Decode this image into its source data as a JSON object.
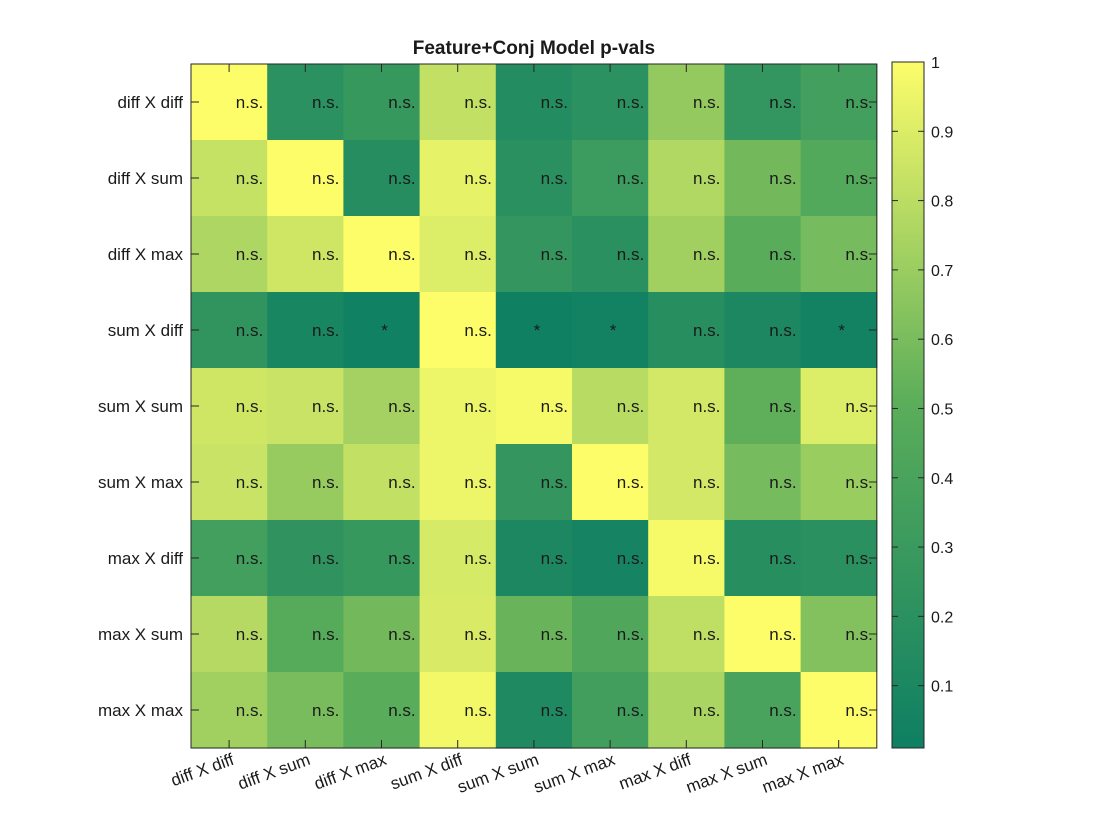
{
  "chart_data": {
    "type": "heatmap",
    "title": "Feature+Conj Model p-vals",
    "row_labels": [
      "diff X diff",
      "diff X sum",
      "diff X max",
      "sum X diff",
      "sum X sum",
      "sum X max",
      "max X diff",
      "max X sum",
      "max X max"
    ],
    "col_labels": [
      "diff X diff",
      "diff X sum",
      "diff X max",
      "sum X diff",
      "sum X sum",
      "sum X max",
      "max X diff",
      "max X sum",
      "max X max"
    ],
    "values": [
      [
        1.0,
        0.2,
        0.28,
        0.82,
        0.15,
        0.2,
        0.68,
        0.25,
        0.35
      ],
      [
        0.83,
        1.0,
        0.16,
        0.93,
        0.19,
        0.31,
        0.77,
        0.58,
        0.46
      ],
      [
        0.76,
        0.86,
        1.0,
        0.9,
        0.26,
        0.19,
        0.72,
        0.5,
        0.59
      ],
      [
        0.24,
        0.08,
        0.03,
        1.0,
        0.02,
        0.04,
        0.17,
        0.1,
        0.04
      ],
      [
        0.86,
        0.84,
        0.73,
        0.95,
        0.98,
        0.79,
        0.87,
        0.52,
        0.9
      ],
      [
        0.84,
        0.69,
        0.82,
        0.95,
        0.26,
        1.0,
        0.87,
        0.59,
        0.7
      ],
      [
        0.35,
        0.23,
        0.28,
        0.88,
        0.1,
        0.06,
        0.98,
        0.17,
        0.19
      ],
      [
        0.78,
        0.48,
        0.58,
        0.89,
        0.55,
        0.44,
        0.81,
        1.0,
        0.63
      ],
      [
        0.72,
        0.6,
        0.49,
        0.97,
        0.12,
        0.34,
        0.75,
        0.4,
        1.0
      ]
    ],
    "annotations": [
      [
        "n.s.",
        "n.s.",
        "n.s.",
        "n.s.",
        "n.s.",
        "n.s.",
        "n.s.",
        "n.s.",
        "n.s."
      ],
      [
        "n.s.",
        "n.s.",
        "n.s.",
        "n.s.",
        "n.s.",
        "n.s.",
        "n.s.",
        "n.s.",
        "n.s."
      ],
      [
        "n.s.",
        "n.s.",
        "n.s.",
        "n.s.",
        "n.s.",
        "n.s.",
        "n.s.",
        "n.s.",
        "n.s."
      ],
      [
        "n.s.",
        "n.s.",
        "*",
        "n.s.",
        "*",
        "*",
        "n.s.",
        "n.s.",
        "*"
      ],
      [
        "n.s.",
        "n.s.",
        "n.s.",
        "n.s.",
        "n.s.",
        "n.s.",
        "n.s.",
        "n.s.",
        "n.s."
      ],
      [
        "n.s.",
        "n.s.",
        "n.s.",
        "n.s.",
        "n.s.",
        "n.s.",
        "n.s.",
        "n.s.",
        "n.s."
      ],
      [
        "n.s.",
        "n.s.",
        "n.s.",
        "n.s.",
        "n.s.",
        "n.s.",
        "n.s.",
        "n.s.",
        "n.s."
      ],
      [
        "n.s.",
        "n.s.",
        "n.s.",
        "n.s.",
        "n.s.",
        "n.s.",
        "n.s.",
        "n.s.",
        "n.s."
      ],
      [
        "n.s.",
        "n.s.",
        "n.s.",
        "n.s.",
        "n.s.",
        "n.s.",
        "n.s.",
        "n.s.",
        "n.s."
      ]
    ],
    "colorbar": {
      "ticks": [
        0.1,
        0.2,
        0.3,
        0.4,
        0.5,
        0.6,
        0.7,
        0.8,
        0.9,
        1
      ],
      "tick_labels": [
        "0.1",
        "0.2",
        "0.3",
        "0.4",
        "0.5",
        "0.6",
        "0.7",
        "0.8",
        "0.9",
        "1"
      ],
      "range": [
        0.01,
        1
      ],
      "colormap": [
        "#0e7f63",
        "#5aad5a",
        "#fdfd6a"
      ]
    },
    "grid": false
  }
}
